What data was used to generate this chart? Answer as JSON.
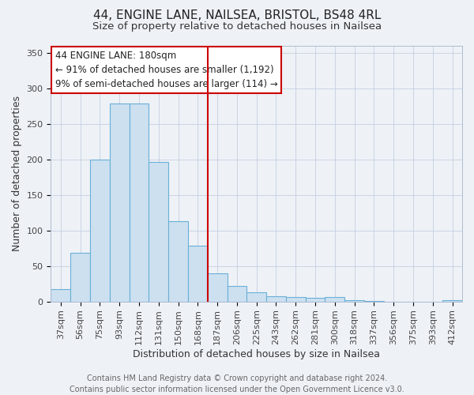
{
  "title": "44, ENGINE LANE, NAILSEA, BRISTOL, BS48 4RL",
  "subtitle": "Size of property relative to detached houses in Nailsea",
  "xlabel": "Distribution of detached houses by size in Nailsea",
  "ylabel": "Number of detached properties",
  "bar_labels": [
    "37sqm",
    "56sqm",
    "75sqm",
    "93sqm",
    "112sqm",
    "131sqm",
    "150sqm",
    "168sqm",
    "187sqm",
    "206sqm",
    "225sqm",
    "243sqm",
    "262sqm",
    "281sqm",
    "300sqm",
    "318sqm",
    "337sqm",
    "356sqm",
    "375sqm",
    "393sqm",
    "412sqm"
  ],
  "bar_heights": [
    18,
    68,
    200,
    278,
    278,
    196,
    113,
    78,
    40,
    22,
    13,
    8,
    6,
    5,
    6,
    2,
    1,
    0,
    0,
    0,
    2
  ],
  "bar_color": "#cce0f0",
  "bar_edgecolor": "#6aafd6",
  "vline_index": 8,
  "vline_color": "#cc0000",
  "annotation_text": "44 ENGINE LANE: 180sqm\n← 91% of detached houses are smaller (1,192)\n9% of semi-detached houses are larger (114) →",
  "annotation_box_edgecolor": "#cc0000",
  "ylim": [
    0,
    360
  ],
  "yticks": [
    0,
    50,
    100,
    150,
    200,
    250,
    300,
    350
  ],
  "footer_line1": "Contains HM Land Registry data © Crown copyright and database right 2024.",
  "footer_line2": "Contains public sector information licensed under the Open Government Licence v3.0.",
  "bg_color": "#eef2f7",
  "title_fontsize": 11,
  "subtitle_fontsize": 9.5,
  "axis_label_fontsize": 9,
  "tick_fontsize": 8,
  "footer_fontsize": 7,
  "annotation_fontsize": 8.5
}
